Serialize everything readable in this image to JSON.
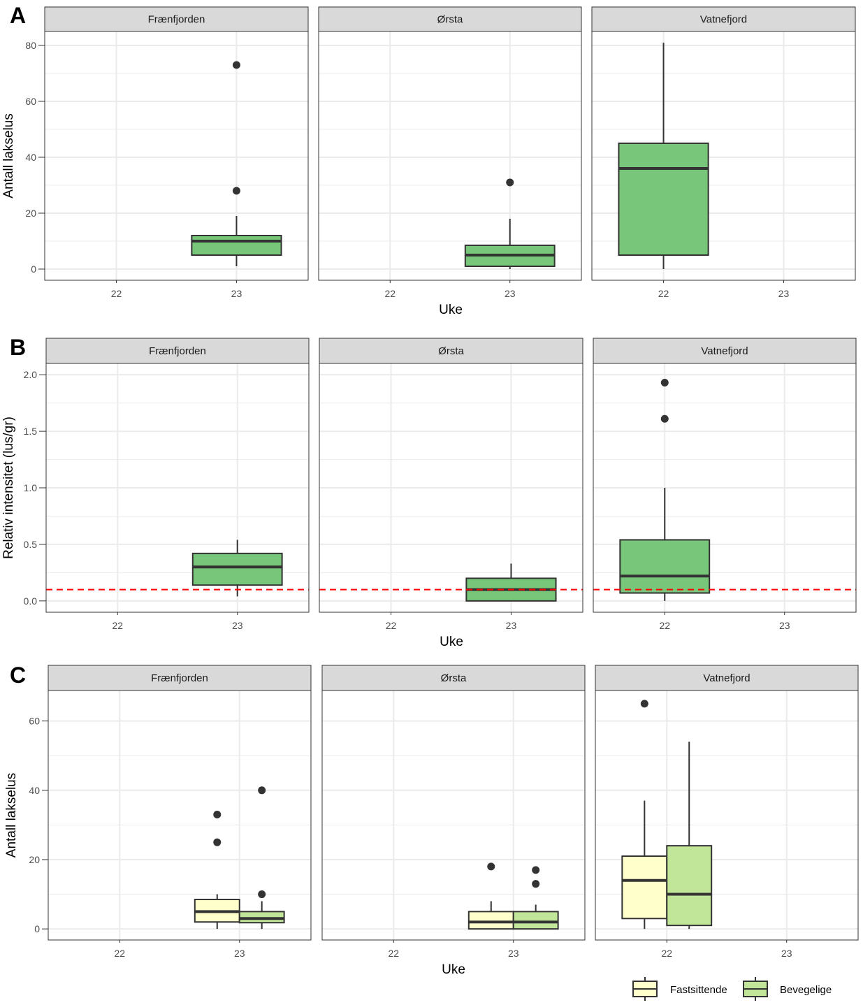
{
  "colors": {
    "fill_green": "#78C679",
    "fill_yellow": "#FFFFCC",
    "fill_lightgreen": "#C2E699",
    "strip_bg": "#D9D9D9",
    "grid": "#EBEBEB",
    "box_line": "#333333",
    "ref_line": "#FF0000"
  },
  "chart_data": [
    {
      "type": "boxplot",
      "tag": "A",
      "ylabel": "Antall lakselus",
      "xlabel": "Uke",
      "x_categories": [
        "22",
        "23"
      ],
      "ylim": [
        -4,
        85
      ],
      "y_ticks": [
        0,
        20,
        40,
        60,
        80
      ],
      "y_tick_labels": [
        "0",
        "20",
        "40",
        "60",
        "80"
      ],
      "facets": [
        {
          "name": "Frænfjorden",
          "boxes": [
            {
              "week": "23",
              "series": "Antall",
              "min": 1,
              "q1": 5,
              "median": 10,
              "q3": 12,
              "max": 19,
              "outliers": [
                28,
                73
              ]
            }
          ]
        },
        {
          "name": "Ørsta",
          "boxes": [
            {
              "week": "23",
              "series": "Antall",
              "min": 0,
              "q1": 1,
              "median": 5,
              "q3": 8.5,
              "max": 18,
              "outliers": [
                31
              ]
            }
          ]
        },
        {
          "name": "Vatnefjord",
          "boxes": [
            {
              "week": "22",
              "series": "Antall",
              "min": 0,
              "q1": 5,
              "median": 36,
              "q3": 45,
              "max": 81,
              "outliers": []
            }
          ]
        }
      ]
    },
    {
      "type": "boxplot",
      "tag": "B",
      "ylabel": "Relativ intensitet (lus/gr)",
      "xlabel": "Uke",
      "x_categories": [
        "22",
        "23"
      ],
      "ylim": [
        -0.1,
        2.1
      ],
      "y_ticks": [
        0,
        0.5,
        1,
        1.5,
        2
      ],
      "y_tick_labels": [
        "0.0",
        "0.5",
        "1.0",
        "1.5",
        "2.0"
      ],
      "reference_line": 0.1,
      "facets": [
        {
          "name": "Frænfjorden",
          "boxes": [
            {
              "week": "23",
              "series": "Intensitet",
              "min": 0.04,
              "q1": 0.14,
              "median": 0.3,
              "q3": 0.42,
              "max": 0.54,
              "outliers": []
            }
          ]
        },
        {
          "name": "Ørsta",
          "boxes": [
            {
              "week": "23",
              "series": "Intensitet",
              "min": 0,
              "q1": 0,
              "median": 0.1,
              "q3": 0.2,
              "max": 0.33,
              "outliers": []
            }
          ]
        },
        {
          "name": "Vatnefjord",
          "boxes": [
            {
              "week": "22",
              "series": "Intensitet",
              "min": 0,
              "q1": 0.07,
              "median": 0.22,
              "q3": 0.54,
              "max": 1.0,
              "outliers": [
                1.61,
                1.93
              ]
            }
          ]
        }
      ]
    },
    {
      "type": "boxplot",
      "tag": "C",
      "ylabel": "Antall lakselus",
      "xlabel": "Uke",
      "x_categories": [
        "22",
        "23"
      ],
      "ylim": [
        -3.2,
        68.8
      ],
      "y_ticks": [
        0,
        20,
        40,
        60
      ],
      "y_tick_labels": [
        "0",
        "20",
        "40",
        "60"
      ],
      "legend": [
        {
          "label": "Fastsittende",
          "series": "Fastsittende"
        },
        {
          "label": "Bevegelige",
          "series": "Bevegelige"
        }
      ],
      "facets": [
        {
          "name": "Frænfjorden",
          "boxes": [
            {
              "week": "23",
              "series": "Fastsittende",
              "min": 0,
              "q1": 2,
              "median": 5,
              "q3": 8.5,
              "max": 10,
              "outliers": [
                25,
                33
              ]
            },
            {
              "week": "23",
              "series": "Bevegelige",
              "min": 0,
              "q1": 1.8,
              "median": 3,
              "q3": 5,
              "max": 8,
              "outliers": [
                10,
                40
              ]
            }
          ]
        },
        {
          "name": "Ørsta",
          "boxes": [
            {
              "week": "23",
              "series": "Fastsittende",
              "min": 0,
              "q1": 0,
              "median": 2,
              "q3": 5,
              "max": 8,
              "outliers": [
                18
              ]
            },
            {
              "week": "23",
              "series": "Bevegelige",
              "min": 0,
              "q1": 0,
              "median": 2,
              "q3": 5,
              "max": 7,
              "outliers": [
                13,
                17
              ]
            }
          ]
        },
        {
          "name": "Vatnefjord",
          "boxes": [
            {
              "week": "22",
              "series": "Fastsittende",
              "min": 0,
              "q1": 3,
              "median": 14,
              "q3": 21,
              "max": 37,
              "outliers": [
                65
              ]
            },
            {
              "week": "22",
              "series": "Bevegelige",
              "min": 0,
              "q1": 1,
              "median": 10,
              "q3": 24,
              "max": 54,
              "outliers": []
            }
          ]
        }
      ]
    }
  ]
}
